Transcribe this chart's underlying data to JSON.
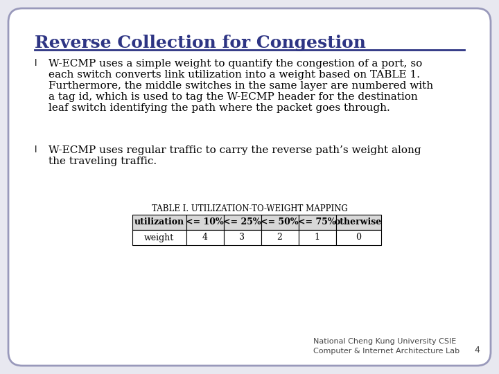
{
  "title": "Reverse Collection for Congestion",
  "title_color": "#2E3584",
  "title_fontsize": 18,
  "background_color": "#E8E8F0",
  "slide_bg": "#FFFFFF",
  "border_color": "#9999BB",
  "divider_color": "#2E3584",
  "bullet1_line1": "W-ECMP uses a simple weight to quantify the congestion of a port, so",
  "bullet1_line2": "each switch converts link utilization into a weight based on TABLE 1.",
  "bullet1_line3": "Furthermore, the middle switches in the same layer are numbered with",
  "bullet1_line4": "a tag id, which is used to tag the W-ECMP header for the destination",
  "bullet1_line5": "leaf switch identifying the path where the packet goes through.",
  "bullet2_line1": "W-ECMP uses regular traffic to carry the reverse path’s weight along",
  "bullet2_line2": "the traveling traffic.",
  "table_title": "TABLE I. UTILIZATION-TO-WEIGHT MAPPING",
  "table_headers": [
    "utilization",
    "<= 10%",
    "<= 25%",
    "<= 50%",
    "<= 75%",
    "otherwise"
  ],
  "table_row": [
    "weight",
    "4",
    "3",
    "2",
    "1",
    "0"
  ],
  "footer_text": "National Cheng Kung University CSIE\nComputer & Internet Architecture Lab",
  "footer_num": "4",
  "text_color": "#000000",
  "footer_color": "#444444",
  "body_fontsize": 11,
  "table_fontsize": 9,
  "table_title_fontsize": 8.5,
  "footer_fontsize": 8
}
